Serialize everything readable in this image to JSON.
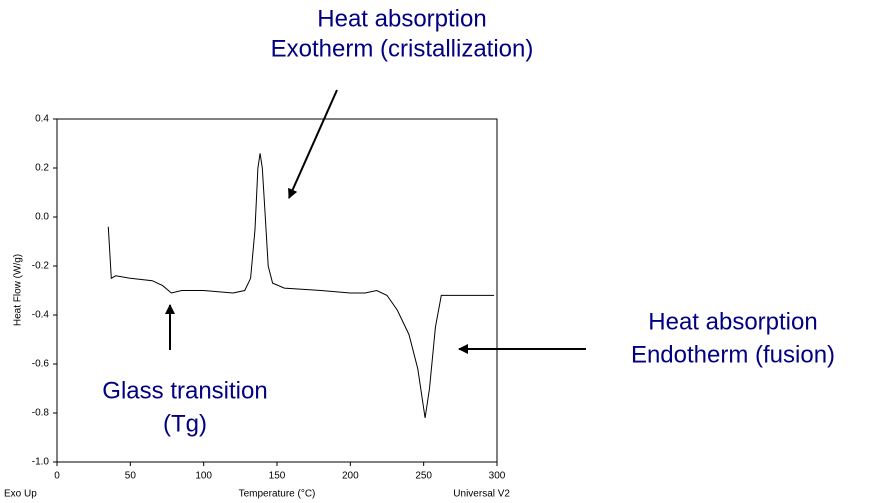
{
  "chart_data": {
    "type": "line",
    "x_label": "Temperature (°C)",
    "y_label": "Heat Flow (W/g)",
    "footer_left": "Exo Up",
    "footer_right": "Universal V2",
    "color": "#000000",
    "x": [
      35,
      37,
      40,
      50,
      65,
      72,
      78,
      85,
      100,
      120,
      128,
      132,
      135,
      137,
      138.5,
      140,
      142,
      144,
      147,
      155,
      180,
      200,
      210,
      218,
      225,
      232,
      240,
      246,
      251,
      254,
      258,
      262,
      280,
      298
    ],
    "values": [
      -0.04,
      -0.25,
      -0.24,
      -0.25,
      -0.26,
      -0.28,
      -0.31,
      -0.3,
      -0.3,
      -0.31,
      -0.3,
      -0.25,
      -0.05,
      0.2,
      0.26,
      0.2,
      0,
      -0.2,
      -0.27,
      -0.29,
      -0.3,
      -0.31,
      -0.31,
      -0.3,
      -0.32,
      -0.38,
      -0.48,
      -0.62,
      -0.82,
      -0.7,
      -0.45,
      -0.32,
      -0.32,
      -0.32
    ],
    "xlim": [
      0,
      300
    ],
    "xticks": [
      0,
      50,
      100,
      150,
      200,
      250,
      300
    ],
    "ylim": [
      -1.0,
      0.4
    ],
    "yticks": [
      0.4,
      0.2,
      {
        "value": 0,
        "label": "0.0"
      },
      -0.2,
      -0.4,
      -0.6,
      -0.8,
      {
        "value": -1.0,
        "label": "-1.0"
      }
    ],
    "annotations": [
      {
        "lines": [
          "Heat absorption",
          "Exotherm (cristallization)"
        ]
      },
      {
        "lines": [
          "Glass transition",
          "(Tg)"
        ]
      },
      {
        "lines": [
          "Heat absorption",
          "Endotherm (fusion)"
        ]
      }
    ]
  }
}
